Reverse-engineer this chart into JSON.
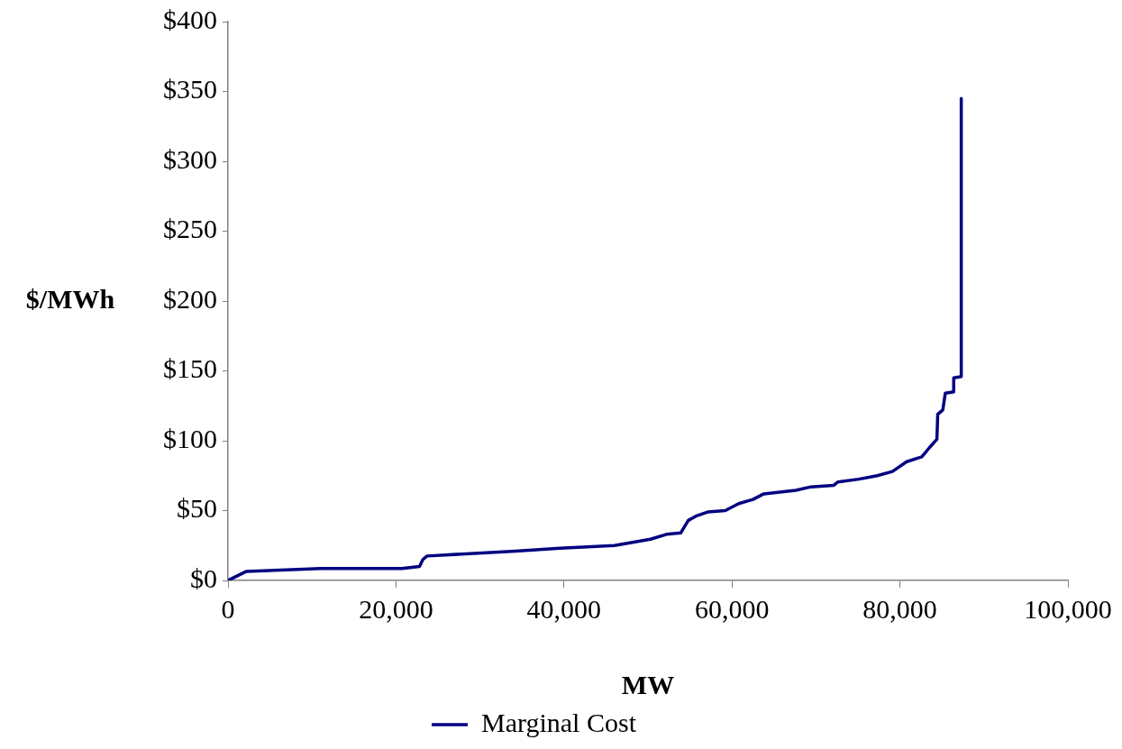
{
  "chart_data": {
    "type": "line",
    "xlabel": "MW",
    "ylabel": "$/MWh",
    "legend": "bottom",
    "grid": false,
    "marker": "none",
    "line_style": "solid",
    "xlim": [
      0,
      100000
    ],
    "xticks": [
      0,
      {
        "value": 20000,
        "label": "20,000"
      },
      {
        "value": 40000,
        "label": "40,000"
      },
      {
        "value": 60000,
        "label": "60,000"
      },
      {
        "value": 80000,
        "label": "80,000"
      },
      {
        "value": 100000,
        "label": "100,000"
      }
    ],
    "ylim": [
      0,
      400
    ],
    "yticks": [
      {
        "value": 0,
        "label": "$0"
      },
      {
        "value": 50,
        "label": "$50"
      },
      {
        "value": 100,
        "label": "$100"
      },
      {
        "value": 150,
        "label": "$150"
      },
      {
        "value": 200,
        "label": "$200"
      },
      {
        "value": 250,
        "label": "$250"
      },
      {
        "value": 300,
        "label": "$300"
      },
      {
        "value": 350,
        "label": "$350"
      },
      {
        "value": 400,
        "label": "$400"
      }
    ],
    "series": [
      {
        "name": "Marginal Cost",
        "color": "#000080",
        "x": [
          0,
          1000,
          2200,
          11000,
          20700,
          22800,
          23200,
          23700,
          34200,
          39500,
          46000,
          50300,
          52200,
          53900,
          54800,
          55700,
          57100,
          59200,
          60800,
          62500,
          63800,
          67600,
          69400,
          72100,
          72600,
          75100,
          77300,
          79100,
          80800,
          82600,
          83500,
          84400,
          84500,
          85100,
          85400,
          86400,
          86400,
          87300,
          87300
        ],
        "values": [
          0,
          3,
          6.5,
          8.5,
          8.5,
          10,
          15,
          17.5,
          21,
          23,
          25,
          29.5,
          33,
          34,
          43,
          46,
          49,
          50,
          55,
          58,
          62,
          64.5,
          67,
          68,
          70.5,
          72.5,
          75,
          78,
          85,
          88.5,
          95,
          101,
          119,
          122,
          134,
          135,
          145,
          146,
          345
        ]
      }
    ]
  }
}
